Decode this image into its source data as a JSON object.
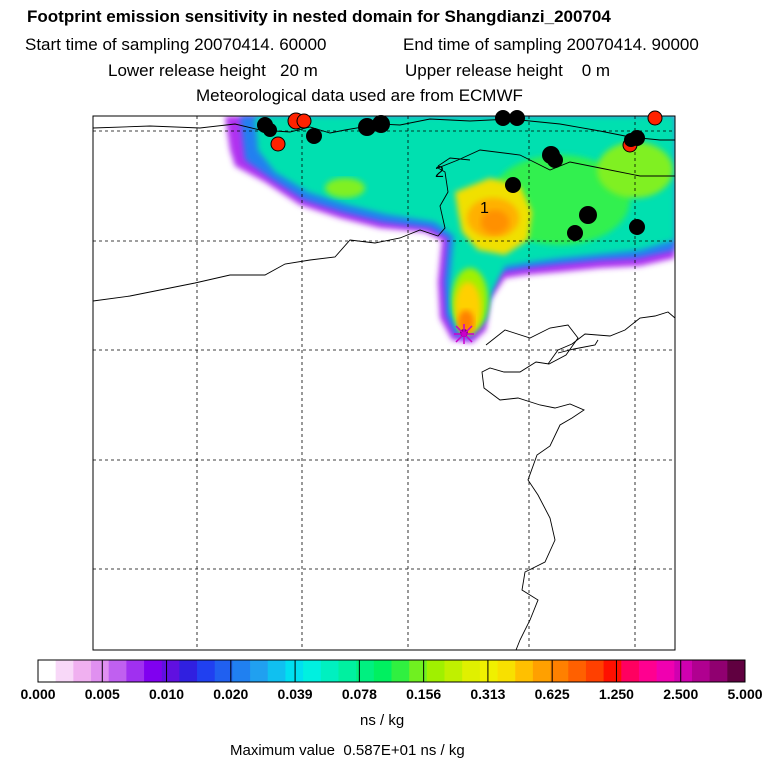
{
  "header": {
    "title": "Footprint emission sensitivity in nested domain for Shangdianzi_200704",
    "start_sampling": "Start time of sampling 20070414. 60000",
    "end_sampling": "End time of sampling 20070414. 90000",
    "lower_release": "Lower release height   20 m",
    "upper_release": "Upper release height    0 m",
    "met_data": "Meteorological data used are from ECMWF"
  },
  "map": {
    "contour_labels": [
      "2",
      "1"
    ],
    "colors": {
      "black_markers": "#000000",
      "red_markers": "#ff2200",
      "release_marker": "#cc00cc"
    }
  },
  "colorbar": {
    "tick_labels": [
      "0.000",
      "0.005",
      "0.010",
      "0.020",
      "0.039",
      "0.078",
      "0.156",
      "0.313",
      "0.625",
      "1.250",
      "2.500",
      "5.000"
    ],
    "colors": [
      "#ffffff",
      "#f8d8f8",
      "#f0b0f0",
      "#e090f0",
      "#c060f0",
      "#a030f0",
      "#8000f0",
      "#6010e0",
      "#3020e0",
      "#2040f0",
      "#2060f0",
      "#2080f0",
      "#20a0f0",
      "#10c0f0",
      "#00e0f0",
      "#00f0e0",
      "#00f0c0",
      "#00f0a0",
      "#00f080",
      "#00f060",
      "#30f040",
      "#70f020",
      "#a0f000",
      "#c0f000",
      "#e0f000",
      "#f0f000",
      "#f8e000",
      "#ffc000",
      "#ffa000",
      "#ff8000",
      "#ff6000",
      "#ff4000",
      "#ff1000",
      "#ff0060",
      "#ff0090",
      "#f000b0",
      "#d000b0",
      "#b00090",
      "#900070",
      "#600040"
    ],
    "units": "ns / kg",
    "max_value": "Maximum value  0.587E+01 ns / kg"
  }
}
